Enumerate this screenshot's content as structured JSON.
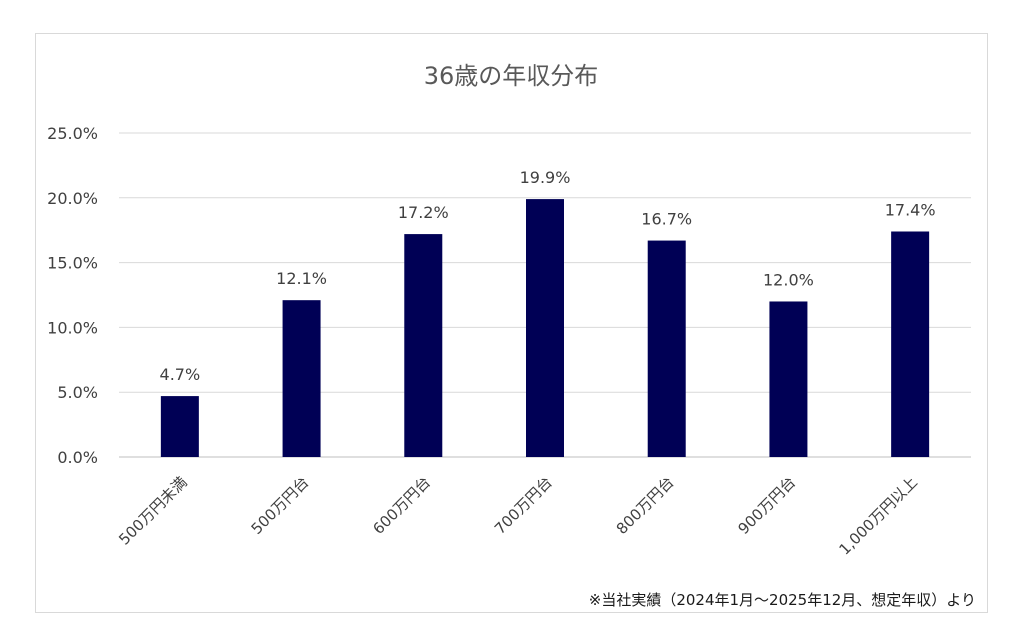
{
  "chart_data": {
    "type": "bar",
    "title": "36歳の年収分布",
    "categories": [
      "500万円未満",
      "500万円台",
      "600万円台",
      "700万円台",
      "800万円台",
      "900万円台",
      "1,000万円以上"
    ],
    "series": [
      {
        "values": [
          4.7,
          12.1,
          17.2,
          19.9,
          16.7,
          12.0,
          17.4
        ]
      }
    ],
    "data_labels": [
      "4.7%",
      "12.1%",
      "17.2%",
      "19.9%",
      "16.7%",
      "12.0%",
      "17.4%"
    ],
    "yticks": [
      "0.0%",
      "5.0%",
      "10.0%",
      "15.0%",
      "20.0%",
      "25.0%"
    ],
    "ylim": [
      0,
      25
    ],
    "grid": true,
    "legend": "none",
    "bar_color": "#000055",
    "xlabel": "",
    "ylabel": ""
  },
  "footnote": "※当社実績（2024年1月～2025年12月、想定年収）より"
}
